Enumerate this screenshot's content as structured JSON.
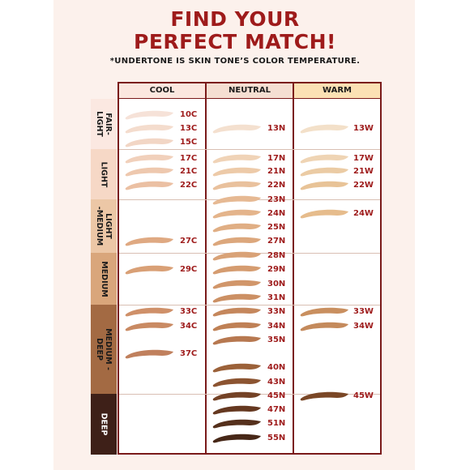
{
  "title_lines": [
    "FIND YOUR",
    "PERFECT MATCH!"
  ],
  "subtitle": "*UNDERTONE IS SKIN TONE’S COLOR TEMPERATURE.",
  "columns": [
    {
      "key": "cool",
      "label": "COOL",
      "color": "#fbe7df"
    },
    {
      "key": "neutral",
      "label": "NEUTRAL",
      "color": "#f5dfd2"
    },
    {
      "key": "warm",
      "label": "WARM",
      "color": "#fbe1b4"
    }
  ],
  "rows": [
    {
      "label": "FAIR-\nLIGHT",
      "color": "#fbe8e1",
      "text_color": "#1a1a1a"
    },
    {
      "label": "LIGHT",
      "color": "#f6d8c6",
      "text_color": "#1a1a1a"
    },
    {
      "label": "LIGHT\n-MEDIUM",
      "color": "#ecc7a6",
      "text_color": "#1a1a1a"
    },
    {
      "label": "MEDIUM",
      "color": "#d9a67b",
      "text_color": "#1a1a1a"
    },
    {
      "label": "MEDIUM -\nDEEP",
      "color": "#a36a43",
      "text_color": "#1a1a1a"
    },
    {
      "label": "DEEP",
      "color": "#3e2018",
      "text_color": "#ffffff"
    }
  ],
  "shades": [
    {
      "code": "10C",
      "col": 0,
      "color": "#f6e2d8"
    },
    {
      "code": "13C",
      "col": 0,
      "color": "#f4dccd"
    },
    {
      "code": "15C",
      "col": 0,
      "color": "#f2d6c5"
    },
    {
      "code": "17C",
      "col": 0,
      "color": "#f1d0bb"
    },
    {
      "code": "21C",
      "col": 0,
      "color": "#eec8ae"
    },
    {
      "code": "22C",
      "col": 0,
      "color": "#ebc0a3"
    },
    {
      "code": "27C",
      "col": 0,
      "color": "#dfa982"
    },
    {
      "code": "29C",
      "col": 0,
      "color": "#d9a076"
    },
    {
      "code": "33C",
      "col": 0,
      "color": "#cf9069"
    },
    {
      "code": "34C",
      "col": 0,
      "color": "#c98a63"
    },
    {
      "code": "37C",
      "col": 0,
      "color": "#c0805d"
    },
    {
      "code": "13N",
      "col": 1,
      "color": "#f4e0cf"
    },
    {
      "code": "17N",
      "col": 1,
      "color": "#f0d3b7"
    },
    {
      "code": "21N",
      "col": 1,
      "color": "#edcaa8"
    },
    {
      "code": "22N",
      "col": 1,
      "color": "#e9c19d"
    },
    {
      "code": "23N",
      "col": 1,
      "color": "#e6b993"
    },
    {
      "code": "24N",
      "col": 1,
      "color": "#e4b48b"
    },
    {
      "code": "25N",
      "col": 1,
      "color": "#e0ae84"
    },
    {
      "code": "27N",
      "col": 1,
      "color": "#dca77c"
    },
    {
      "code": "28N",
      "col": 1,
      "color": "#d9a277"
    },
    {
      "code": "29N",
      "col": 1,
      "color": "#d59c70"
    },
    {
      "code": "30N",
      "col": 1,
      "color": "#d1966a"
    },
    {
      "code": "31N",
      "col": 1,
      "color": "#cc9064"
    },
    {
      "code": "33N",
      "col": 1,
      "color": "#c5875c"
    },
    {
      "code": "34N",
      "col": 1,
      "color": "#bf8055"
    },
    {
      "code": "35N",
      "col": 1,
      "color": "#b77850"
    },
    {
      "code": "40N",
      "col": 1,
      "color": "#9b6139"
    },
    {
      "code": "43N",
      "col": 1,
      "color": "#8c5431"
    },
    {
      "code": "45N",
      "col": 1,
      "color": "#744226"
    },
    {
      "code": "47N",
      "col": 1,
      "color": "#653820"
    },
    {
      "code": "51N",
      "col": 1,
      "color": "#55301c"
    },
    {
      "code": "55N",
      "col": 1,
      "color": "#472717"
    },
    {
      "code": "13W",
      "col": 2,
      "color": "#f3e0c9"
    },
    {
      "code": "17W",
      "col": 2,
      "color": "#efd4b4"
    },
    {
      "code": "21W",
      "col": 2,
      "color": "#ebcba4"
    },
    {
      "code": "22W",
      "col": 2,
      "color": "#e8c397"
    },
    {
      "code": "24W",
      "col": 2,
      "color": "#e6bc8c"
    },
    {
      "code": "33W",
      "col": 2,
      "color": "#c98f5f"
    },
    {
      "code": "34W",
      "col": 2,
      "color": "#c48a5c"
    },
    {
      "code": "45W",
      "col": 2,
      "color": "#7a4726"
    }
  ]
}
